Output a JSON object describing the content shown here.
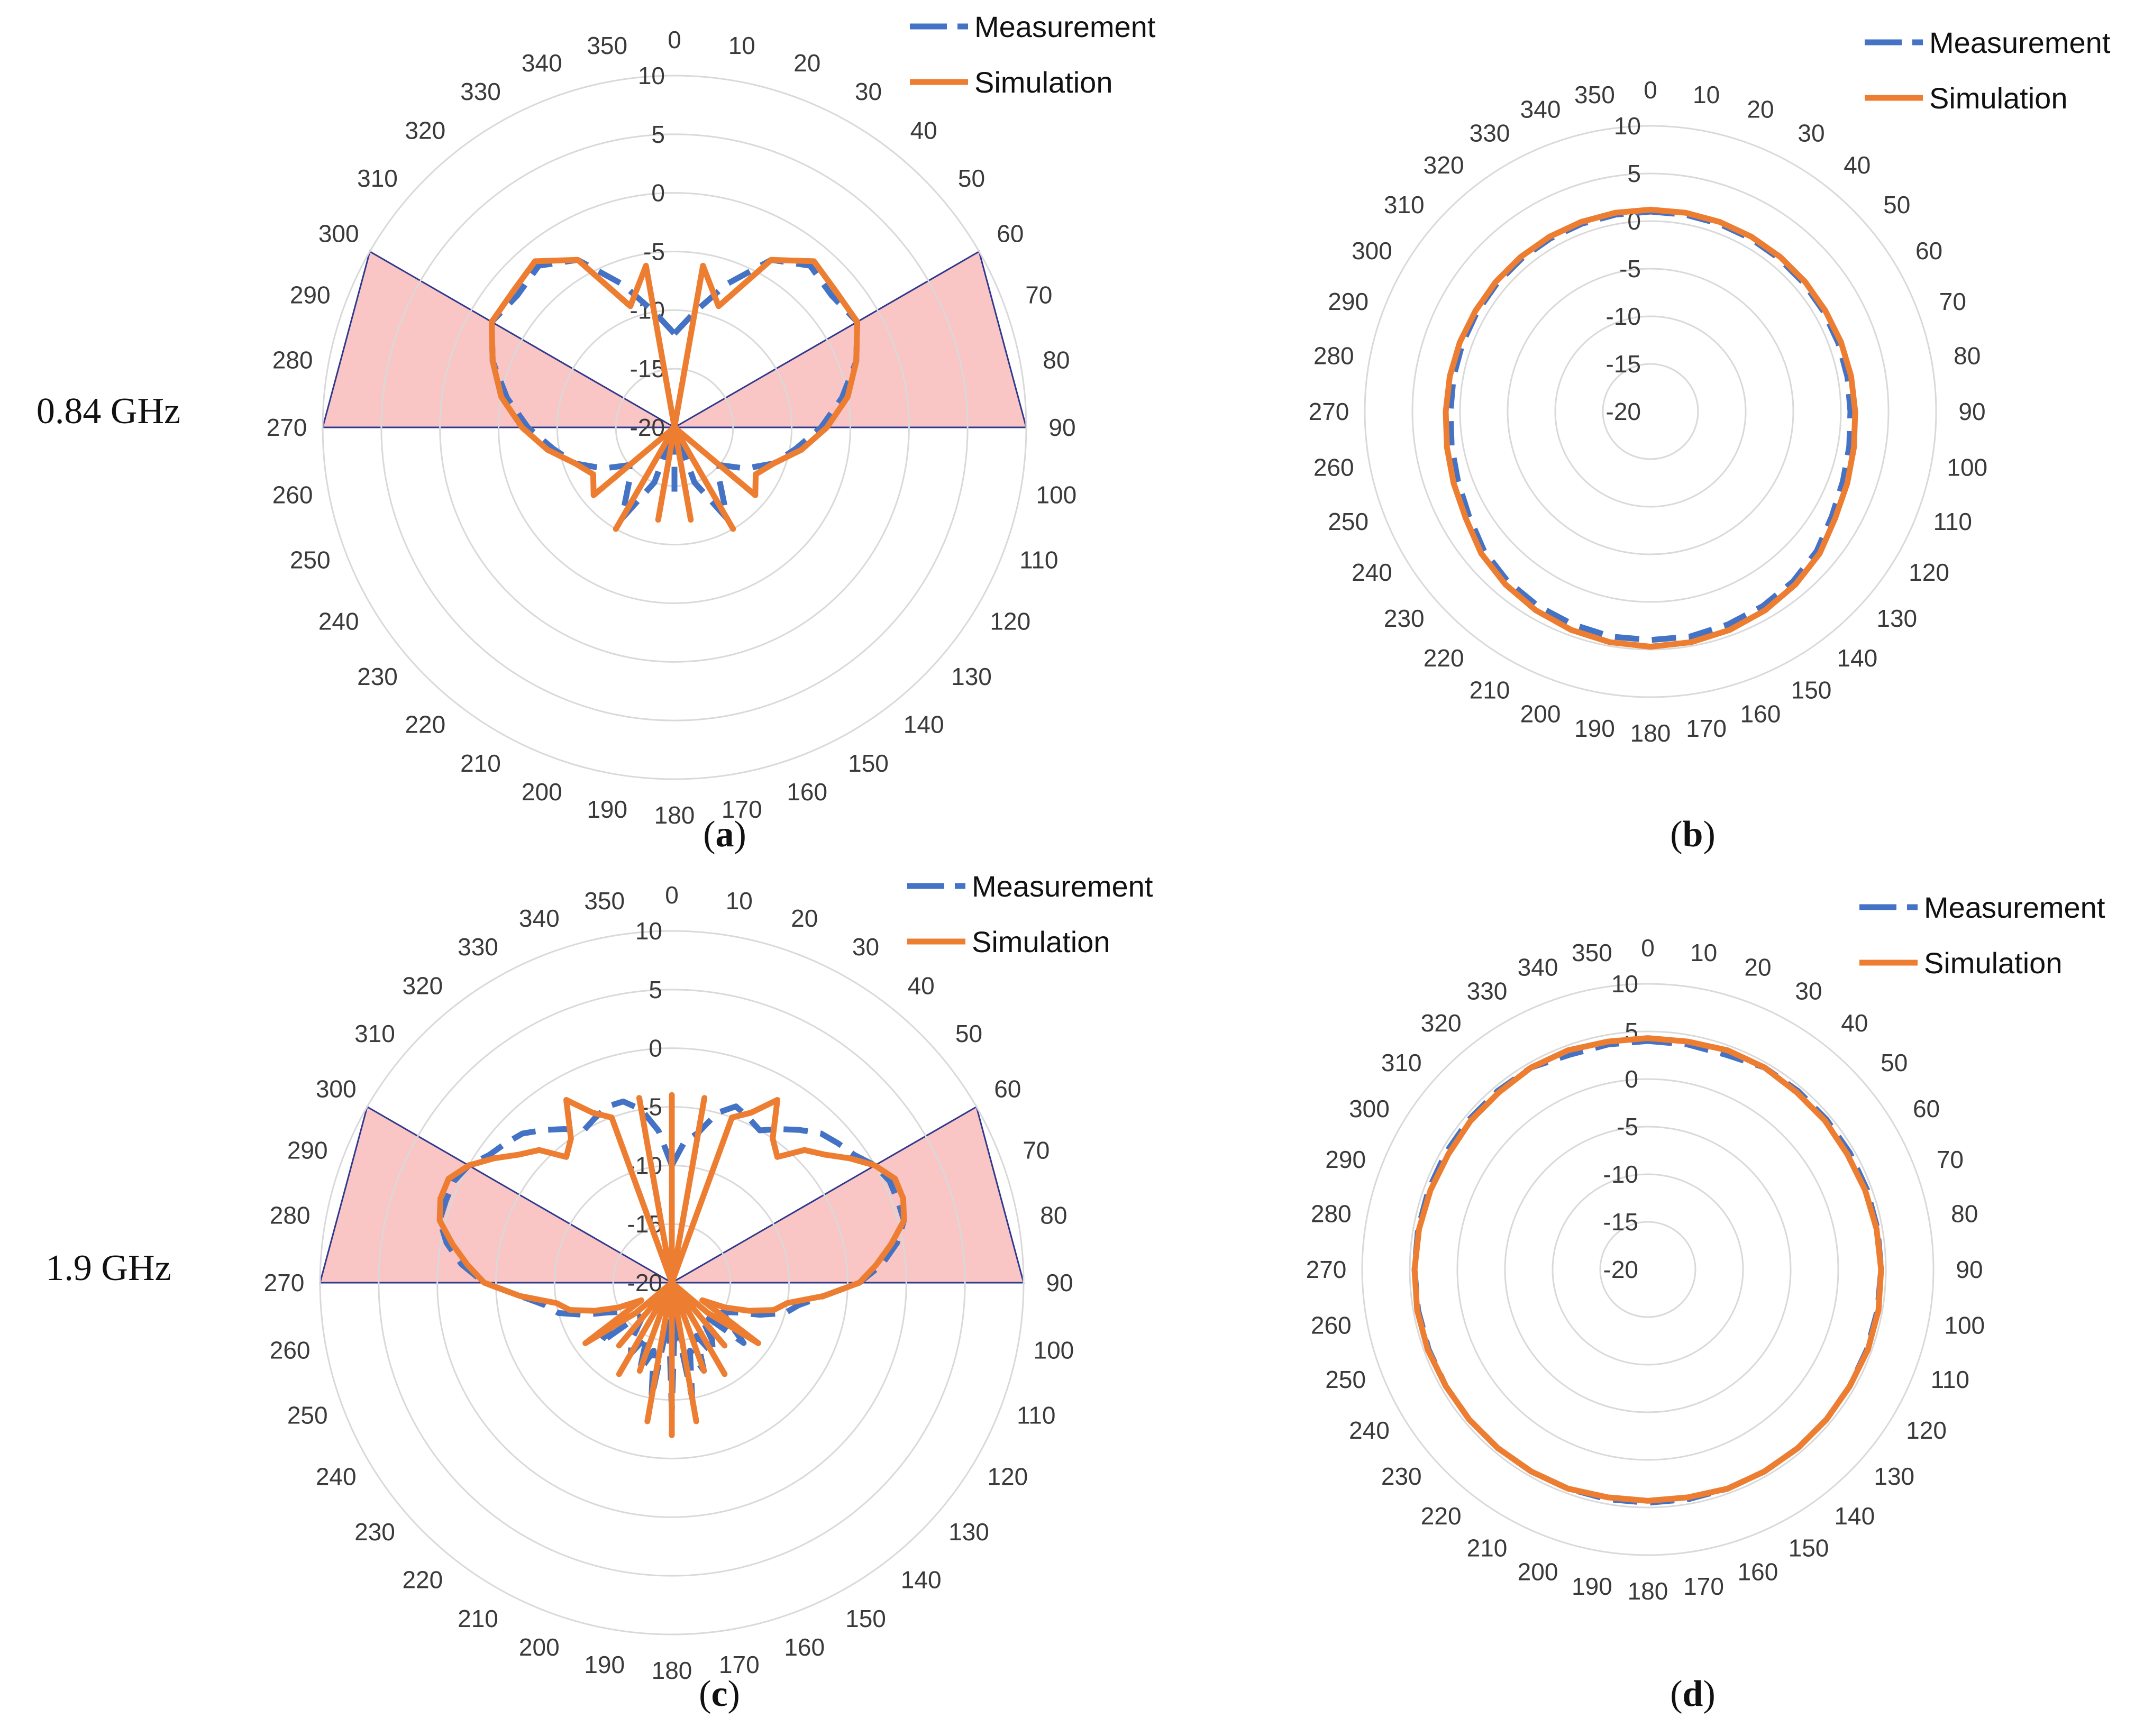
{
  "figure": {
    "row_labels": [
      "0.84 GHz",
      "1.9 GHz"
    ],
    "colors": {
      "measurement": "#4472C4",
      "simulation": "#ED7D31",
      "grid": "#D9D9D9",
      "sector_fill": "#F9C5C5",
      "sector_stroke": "#2F3A8F"
    }
  },
  "chart_data": [
    {
      "id": "a",
      "type": "polar-line",
      "caption": "a",
      "frequency": "0.84 GHz",
      "legend": [
        "Measurement",
        "Simulation"
      ],
      "angle_ticks": [
        0,
        10,
        20,
        30,
        40,
        50,
        60,
        70,
        80,
        90,
        100,
        110,
        120,
        130,
        140,
        150,
        160,
        170,
        180,
        190,
        200,
        210,
        220,
        230,
        240,
        250,
        260,
        270,
        280,
        290,
        300,
        310,
        320,
        330,
        340,
        350
      ],
      "radial_ticks": [
        10,
        5,
        0,
        -5,
        -10,
        -15,
        -20
      ],
      "rlim": [
        -20,
        10
      ],
      "highlight_sectors": [
        [
          60,
          90
        ],
        [
          270,
          300
        ]
      ],
      "angles": [
        0,
        10,
        20,
        30,
        40,
        50,
        60,
        70,
        80,
        90,
        100,
        110,
        120,
        130,
        140,
        150,
        160,
        170,
        180,
        190,
        200,
        210,
        220,
        230,
        240,
        250,
        260,
        270,
        280,
        290,
        300,
        310,
        320,
        330,
        340,
        350,
        360
      ],
      "series": [
        {
          "name": "Measurement",
          "style": "dashed",
          "values": [
            -12,
            -10,
            -7,
            -3.5,
            -2,
            -2.5,
            -2,
            -3.5,
            -5.5,
            -7.5,
            -9.5,
            -11,
            -13,
            -15,
            -14,
            -11,
            -15,
            -20,
            -14,
            -20,
            -15,
            -11,
            -14,
            -15,
            -13,
            -11,
            -9.5,
            -7.5,
            -5.5,
            -3.5,
            -2,
            -2.5,
            -2,
            -3.5,
            -7,
            -10,
            -12
          ]
        },
        {
          "name": "Simulation",
          "style": "solid",
          "values": [
            -20,
            -6,
            -9,
            -3.5,
            -1.5,
            -2,
            -2,
            -3.5,
            -5,
            -7,
            -9,
            -11,
            -12,
            -11,
            -20,
            -10,
            -20,
            -12,
            -20,
            -12,
            -20,
            -10,
            -20,
            -11,
            -12,
            -11,
            -9,
            -7,
            -5,
            -3.5,
            -2,
            -2,
            -1.5,
            -3.5,
            -9,
            -6,
            -20
          ]
        }
      ]
    },
    {
      "id": "b",
      "type": "polar-line",
      "caption": "b",
      "legend": [
        "Measurement",
        "Simulation"
      ],
      "angle_ticks": [
        0,
        10,
        20,
        30,
        40,
        50,
        60,
        70,
        80,
        90,
        100,
        110,
        120,
        130,
        140,
        150,
        160,
        170,
        180,
        190,
        200,
        210,
        220,
        230,
        240,
        250,
        260,
        270,
        280,
        290,
        300,
        310,
        320,
        330,
        340,
        350
      ],
      "radial_ticks": [
        10,
        5,
        0,
        -5,
        -10,
        -15,
        -20
      ],
      "rlim": [
        -20,
        10
      ],
      "angles": [
        0,
        10,
        20,
        30,
        40,
        50,
        60,
        70,
        80,
        90,
        100,
        110,
        120,
        130,
        140,
        150,
        160,
        170,
        180,
        190,
        200,
        210,
        220,
        230,
        240,
        250,
        260,
        270,
        280,
        290,
        300,
        310,
        320,
        330,
        340,
        350,
        360
      ],
      "series": [
        {
          "name": "Measurement",
          "style": "dashed",
          "values": [
            1,
            1,
            1,
            1,
            1,
            1,
            1,
            1,
            1,
            1,
            1.2,
            1.5,
            2,
            2.8,
            3.3,
            3.6,
            3.8,
            4,
            4,
            4,
            3.8,
            3.6,
            3.3,
            2.8,
            2,
            1.5,
            1.2,
            1,
            1,
            1,
            1,
            1,
            1,
            1,
            1,
            1,
            1
          ]
        },
        {
          "name": "Simulation",
          "style": "solid",
          "values": [
            1.2,
            1.2,
            1.2,
            1.2,
            1.2,
            1.2,
            1.2,
            1.3,
            1.4,
            1.5,
            1.7,
            2,
            2.4,
            3.2,
            3.7,
            4.1,
            4.4,
            4.6,
            4.7,
            4.6,
            4.4,
            4.1,
            3.7,
            3.2,
            2.4,
            2,
            1.7,
            1.5,
            1.4,
            1.3,
            1.2,
            1.2,
            1.2,
            1.2,
            1.2,
            1.2,
            1.2
          ]
        }
      ]
    },
    {
      "id": "c",
      "type": "polar-line",
      "caption": "c",
      "frequency": "1.9 GHz",
      "legend": [
        "Measurement",
        "Simulation"
      ],
      "angle_ticks": [
        0,
        10,
        20,
        30,
        40,
        50,
        60,
        70,
        80,
        90,
        100,
        110,
        120,
        130,
        140,
        150,
        160,
        170,
        180,
        190,
        200,
        210,
        220,
        230,
        240,
        250,
        260,
        270,
        280,
        290,
        300,
        310,
        320,
        330,
        340,
        350
      ],
      "radial_ticks": [
        10,
        5,
        0,
        -5,
        -10,
        -15,
        -20
      ],
      "rlim": [
        -20,
        10
      ],
      "highlight_sectors": [
        [
          60,
          90
        ],
        [
          270,
          300
        ]
      ],
      "angles": [
        0,
        5,
        10,
        15,
        20,
        25,
        30,
        35,
        40,
        45,
        50,
        55,
        60,
        65,
        70,
        75,
        80,
        85,
        90,
        95,
        100,
        105,
        110,
        115,
        120,
        125,
        130,
        135,
        140,
        145,
        150,
        155,
        160,
        165,
        170,
        175,
        180,
        185,
        190,
        195,
        200,
        205,
        210,
        215,
        220,
        225,
        230,
        235,
        240,
        245,
        250,
        255,
        260,
        265,
        270,
        275,
        280,
        285,
        290,
        295,
        300,
        305,
        310,
        315,
        320,
        325,
        330,
        335,
        340,
        345,
        350,
        355,
        360
      ],
      "series": [
        {
          "name": "Measurement",
          "style": "dashed",
          "values": [
            -10,
            -8,
            -7,
            -5,
            -4,
            -4.5,
            -5,
            -4,
            -3,
            -2,
            -1.5,
            -1,
            0,
            0.5,
            0.5,
            0.5,
            -0.5,
            -2,
            -4,
            -7,
            -9,
            -10,
            -12,
            -14,
            -15,
            -14,
            -12,
            -16,
            -16,
            -14,
            -13,
            -15,
            -12,
            -14,
            -10,
            -17,
            -9,
            -17,
            -10,
            -14,
            -12,
            -15,
            -13,
            -14,
            -16,
            -16,
            -12,
            -14,
            -15,
            -14,
            -12,
            -10,
            -9,
            -7,
            -4,
            -2,
            -0.5,
            0.5,
            0.5,
            0.5,
            0,
            -1,
            -1.5,
            -2,
            -3,
            -4,
            -5,
            -4.5,
            -4,
            -4,
            -5,
            -7,
            -10
          ]
        },
        {
          "name": "Simulation",
          "style": "solid",
          "values": [
            -4,
            -20,
            -4,
            -20,
            -5,
            -4,
            -2,
            -5,
            -6,
            -4,
            -3,
            -1.5,
            0,
            1,
            1,
            0.5,
            -1,
            -2.5,
            -4,
            -7,
            -10,
            -11,
            -13,
            -15,
            -17,
            -11,
            -16,
            -20,
            -13,
            -20,
            -11,
            -20,
            -12,
            -20,
            -8,
            -20,
            -7,
            -20,
            -8,
            -20,
            -12,
            -20,
            -11,
            -20,
            -13,
            -20,
            -16,
            -11,
            -17,
            -15,
            -13,
            -11,
            -10,
            -7,
            -4,
            -2.5,
            -1,
            0.5,
            1,
            1,
            0,
            -1.5,
            -3,
            -4,
            -6,
            -5,
            -2,
            -4,
            -5,
            -20,
            -4,
            -20,
            -4
          ]
        }
      ]
    },
    {
      "id": "d",
      "type": "polar-line",
      "caption": "d",
      "legend": [
        "Measurement",
        "Simulation"
      ],
      "angle_ticks": [
        0,
        10,
        20,
        30,
        40,
        50,
        60,
        70,
        80,
        90,
        100,
        110,
        120,
        130,
        140,
        150,
        160,
        170,
        180,
        190,
        200,
        210,
        220,
        230,
        240,
        250,
        260,
        270,
        280,
        290,
        300,
        310,
        320,
        330,
        340,
        350
      ],
      "radial_ticks": [
        10,
        5,
        0,
        -5,
        -10,
        -15,
        -20
      ],
      "rlim": [
        -20,
        10
      ],
      "angles": [
        0,
        10,
        20,
        30,
        40,
        50,
        60,
        70,
        80,
        90,
        100,
        110,
        120,
        130,
        140,
        150,
        160,
        170,
        180,
        190,
        200,
        210,
        220,
        230,
        240,
        250,
        260,
        270,
        280,
        290,
        300,
        310,
        320,
        330,
        340,
        350,
        360
      ],
      "series": [
        {
          "name": "Measurement",
          "style": "dashed",
          "values": [
            4,
            4,
            4,
            4.5,
            4.5,
            4.5,
            4.5,
            4.5,
            4.5,
            4.5,
            4.5,
            4.5,
            4.5,
            4.5,
            4.5,
            4.5,
            4.5,
            4.5,
            4.5,
            4.5,
            4.5,
            4.5,
            4.5,
            4.5,
            4.5,
            4.5,
            4.5,
            4.5,
            4.5,
            4.5,
            4.5,
            4.5,
            4.5,
            4.5,
            4,
            4,
            4
          ]
        },
        {
          "name": "Simulation",
          "style": "solid",
          "values": [
            4.3,
            4.3,
            4.5,
            4.5,
            4.3,
            4.3,
            4.2,
            4.3,
            4.4,
            4.5,
            4.6,
            4.6,
            4.5,
            4.5,
            4.5,
            4.5,
            4.5,
            4.3,
            4.3,
            4.3,
            4.5,
            4.5,
            4.5,
            4.5,
            4.5,
            4.6,
            4.6,
            4.5,
            4.4,
            4.3,
            4.2,
            4.3,
            4.3,
            4.5,
            4.5,
            4.3,
            4.3
          ]
        }
      ]
    }
  ]
}
